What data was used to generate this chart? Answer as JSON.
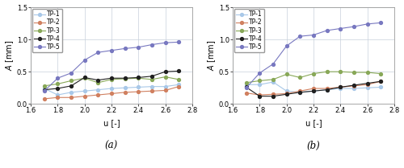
{
  "x": [
    1.7,
    1.8,
    1.9,
    2.0,
    2.1,
    2.2,
    2.3,
    2.4,
    2.5,
    2.6,
    2.7
  ],
  "panel_a": {
    "TP-1": [
      0.24,
      0.14,
      0.18,
      0.2,
      0.22,
      0.24,
      0.25,
      0.26,
      0.27,
      0.27,
      0.3
    ],
    "TP-2": [
      0.08,
      0.1,
      0.1,
      0.12,
      0.14,
      0.16,
      0.18,
      0.19,
      0.2,
      0.21,
      0.27
    ],
    "TP-3": [
      0.28,
      0.31,
      0.36,
      0.4,
      0.33,
      0.38,
      0.39,
      0.4,
      0.38,
      0.42,
      0.38
    ],
    "TP-4": [
      0.22,
      0.24,
      0.28,
      0.41,
      0.37,
      0.4,
      0.4,
      0.41,
      0.43,
      0.5,
      0.51
    ],
    "TP-5": [
      0.2,
      0.4,
      0.48,
      0.68,
      0.8,
      0.83,
      0.86,
      0.88,
      0.92,
      0.95,
      0.96
    ]
  },
  "panel_b": {
    "TP-1": [
      0.3,
      0.3,
      0.34,
      0.2,
      0.18,
      0.2,
      0.22,
      0.24,
      0.24,
      0.25,
      0.26
    ],
    "TP-2": [
      0.17,
      0.14,
      0.15,
      0.16,
      0.2,
      0.24,
      0.24,
      0.26,
      0.28,
      0.3,
      0.35
    ],
    "TP-3": [
      0.33,
      0.36,
      0.38,
      0.46,
      0.41,
      0.47,
      0.5,
      0.5,
      0.49,
      0.49,
      0.47
    ],
    "TP-4": [
      0.26,
      0.12,
      0.12,
      0.15,
      0.18,
      0.2,
      0.22,
      0.26,
      0.29,
      0.32,
      0.35
    ],
    "TP-5": [
      0.25,
      0.48,
      0.62,
      0.9,
      1.05,
      1.07,
      1.14,
      1.17,
      1.2,
      1.24,
      1.26
    ]
  },
  "colors": {
    "TP-1": "#a8c8e8",
    "TP-2": "#d08060",
    "TP-3": "#88a858",
    "TP-4": "#202020",
    "TP-5": "#7878c0"
  },
  "xlim": [
    1.6,
    2.8
  ],
  "ylim": [
    0,
    1.5
  ],
  "xticks": [
    1.6,
    1.8,
    2.0,
    2.2,
    2.4,
    2.6,
    2.8
  ],
  "yticks": [
    0,
    0.5,
    1.0,
    1.5
  ],
  "xlabel": "u [-]",
  "ylabel": "A [mm]",
  "label_a": "(a)",
  "label_b": "(b)"
}
